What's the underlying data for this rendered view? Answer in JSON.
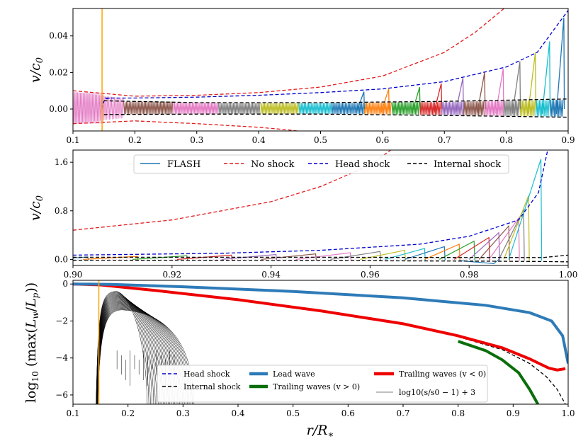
{
  "colors": {
    "flash": "#1f77b4",
    "no_shock": "#e41a1c",
    "head_shock": "#0000cc",
    "internal_shock": "#000000",
    "lead_wave": "#2e7bb8",
    "trailing_neg": "#ee0000",
    "trailing_pos": "#0a6e0a",
    "orange_marker": "#ffa500",
    "cycle": [
      "#1f77b4",
      "#ff7f0e",
      "#2ca02c",
      "#d62728",
      "#9467bd",
      "#8c564b",
      "#e377c2",
      "#7f7f7f",
      "#bcbd22",
      "#17becf"
    ]
  },
  "chart_data": [
    {
      "type": "line",
      "panel": "top",
      "ylabel": "v/c0",
      "xlim": [
        0.1,
        0.9
      ],
      "ylim": [
        -0.012,
        0.055
      ],
      "xticks": [
        "0.1",
        "0.2",
        "0.3",
        "0.4",
        "0.5",
        "0.6",
        "0.7",
        "0.8",
        "0.9"
      ],
      "yticks": [
        "0.00",
        "0.02",
        "0.04"
      ],
      "orange_line_x": 0.147,
      "curves": {
        "no_shock_upper": {
          "x": [
            0.1,
            0.2,
            0.3,
            0.4,
            0.5,
            0.6,
            0.7,
            0.75,
            0.8
          ],
          "y": [
            0.01,
            0.007,
            0.0075,
            0.009,
            0.012,
            0.018,
            0.031,
            0.042,
            0.056
          ]
        },
        "no_shock_lower": {
          "x": [
            0.1,
            0.2,
            0.3,
            0.4,
            0.45,
            0.5
          ],
          "y": [
            -0.008,
            -0.0065,
            -0.008,
            -0.01,
            -0.0115,
            -0.0135
          ]
        },
        "head_shock": {
          "x": [
            0.15,
            0.2,
            0.3,
            0.4,
            0.5,
            0.6,
            0.7,
            0.8,
            0.85,
            0.9
          ],
          "y": [
            0.006,
            0.006,
            0.0065,
            0.0075,
            0.009,
            0.011,
            0.015,
            0.023,
            0.031,
            0.054
          ]
        },
        "internal_upper": {
          "x": [
            0.15,
            0.3,
            0.5,
            0.7,
            0.9
          ],
          "y": [
            0.0045,
            0.0035,
            0.0035,
            0.0042,
            0.0055
          ]
        },
        "internal_lower": {
          "x": [
            0.15,
            0.3,
            0.5,
            0.7,
            0.9
          ],
          "y": [
            -0.003,
            -0.0028,
            -0.0028,
            -0.0035,
            -0.0045
          ]
        }
      },
      "shock_peaks": [
        {
          "x": 0.57,
          "y": 0.0095
        },
        {
          "x": 0.61,
          "y": 0.011
        },
        {
          "x": 0.66,
          "y": 0.012
        },
        {
          "x": 0.695,
          "y": 0.014
        },
        {
          "x": 0.73,
          "y": 0.017
        },
        {
          "x": 0.765,
          "y": 0.02
        },
        {
          "x": 0.795,
          "y": 0.022
        },
        {
          "x": 0.822,
          "y": 0.026
        },
        {
          "x": 0.847,
          "y": 0.031
        },
        {
          "x": 0.87,
          "y": 0.037
        },
        {
          "x": 0.893,
          "y": 0.05
        }
      ]
    },
    {
      "type": "line",
      "panel": "middle",
      "ylabel": "v/c0",
      "xlim": [
        0.9,
        1.0
      ],
      "ylim": [
        -0.1,
        1.8
      ],
      "xticks": [
        "0.90",
        "0.92",
        "0.94",
        "0.96",
        "0.98",
        "1.00"
      ],
      "yticks": [
        "0.0",
        "0.8",
        "1.6"
      ],
      "legend": [
        "FLASH",
        "No shock",
        "Head shock",
        "Internal shock"
      ],
      "curves": {
        "no_shock": {
          "x": [
            0.9,
            0.92,
            0.94,
            0.95,
            0.96,
            0.965
          ],
          "y": [
            0.48,
            0.65,
            0.95,
            1.2,
            1.55,
            1.85
          ]
        },
        "head_shock": {
          "x": [
            0.9,
            0.93,
            0.95,
            0.97,
            0.98,
            0.99,
            0.994,
            0.996
          ],
          "y": [
            0.07,
            0.1,
            0.15,
            0.25,
            0.38,
            0.65,
            1.1,
            1.85
          ]
        },
        "internal_upper": {
          "x": [
            0.9,
            0.95,
            0.985,
            0.995,
            1.0
          ],
          "y": [
            0.035,
            0.035,
            0.03,
            0.03,
            0.07
          ]
        },
        "internal_lower": {
          "x": [
            0.9,
            0.95,
            0.985,
            0.995,
            1.0
          ],
          "y": [
            -0.015,
            -0.02,
            -0.03,
            -0.035,
            -0.04
          ]
        }
      },
      "shock_peaks": [
        {
          "x": 0.903,
          "y": 0.04
        },
        {
          "x": 0.913,
          "y": 0.05
        },
        {
          "x": 0.923,
          "y": 0.06
        },
        {
          "x": 0.932,
          "y": 0.07
        },
        {
          "x": 0.941,
          "y": 0.08
        },
        {
          "x": 0.949,
          "y": 0.09
        },
        {
          "x": 0.956,
          "y": 0.11
        },
        {
          "x": 0.962,
          "y": 0.13
        },
        {
          "x": 0.967,
          "y": 0.15
        },
        {
          "x": 0.971,
          "y": 0.18
        },
        {
          "x": 0.975,
          "y": 0.21
        },
        {
          "x": 0.978,
          "y": 0.25
        },
        {
          "x": 0.981,
          "y": 0.3
        },
        {
          "x": 0.984,
          "y": 0.36
        },
        {
          "x": 0.986,
          "y": 0.44
        },
        {
          "x": 0.988,
          "y": 0.55
        },
        {
          "x": 0.99,
          "y": 0.68
        },
        {
          "x": 0.991,
          "y": 0.82
        },
        {
          "x": 0.992,
          "y": 1.05
        },
        {
          "x": 0.9945,
          "y": 1.65
        }
      ]
    },
    {
      "type": "line",
      "panel": "bottom",
      "ylabel": "log10 (max(Lw/Lp))",
      "xlabel": "r/R∗",
      "xlim": [
        0.1,
        1.0
      ],
      "ylim": [
        -6.5,
        0.2
      ],
      "xticks": [
        "0.1",
        "0.2",
        "0.3",
        "0.4",
        "0.5",
        "0.6",
        "0.7",
        "0.8",
        "0.9",
        "1.0"
      ],
      "yticks": [
        "0",
        "−2",
        "−4",
        "−6"
      ],
      "orange_line_x": 0.147,
      "legend": [
        "Head shock",
        "Internal shock",
        "Lead wave",
        "Trailing waves (v > 0)",
        "Trailing waves (v < 0)",
        "log10(s/s0 − 1) + 3"
      ],
      "curves": {
        "lead_wave": {
          "x": [
            0.1,
            0.17,
            0.3,
            0.5,
            0.7,
            0.85,
            0.93,
            0.97,
            0.99,
            1.0
          ],
          "y": [
            0,
            -0.02,
            -0.15,
            -0.4,
            -0.75,
            -1.15,
            -1.55,
            -2.0,
            -2.8,
            -4.3
          ]
        },
        "trailing_neg": {
          "x": [
            0.1,
            0.15,
            0.25,
            0.4,
            0.55,
            0.7,
            0.8,
            0.88,
            0.93,
            0.965,
            0.98,
            0.995
          ],
          "y": [
            0,
            -0.05,
            -0.35,
            -0.85,
            -1.45,
            -2.15,
            -2.8,
            -3.45,
            -4.05,
            -4.55,
            -4.65,
            -4.58
          ]
        },
        "trailing_pos": {
          "x": [
            0.8,
            0.85,
            0.88,
            0.91,
            0.93,
            0.945
          ],
          "y": [
            -3.1,
            -3.6,
            -4.1,
            -4.8,
            -5.7,
            -6.5
          ]
        },
        "internal_shock": {
          "x": [
            0.8,
            0.88,
            0.93,
            0.96,
            0.98,
            0.995
          ],
          "y": [
            -2.85,
            -3.55,
            -4.3,
            -5.0,
            -5.7,
            -6.5
          ]
        }
      },
      "entropy_curves": 30
    }
  ]
}
